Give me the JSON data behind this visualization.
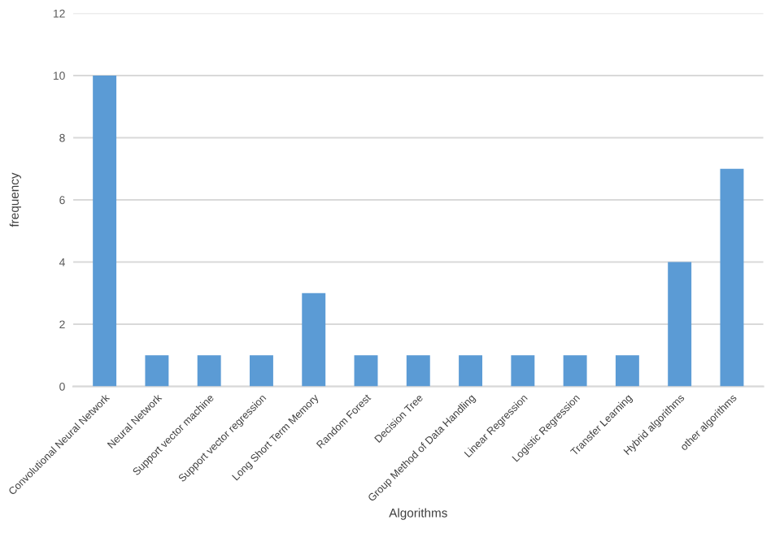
{
  "chart_data": {
    "type": "bar",
    "xlabel": "Algorithms",
    "ylabel": "frequency",
    "categories": [
      "Convolutional Neural Network",
      "Neural Network",
      "Support vector machine",
      "Support vector regression",
      "Long Short Term Memory",
      "Random Forest",
      "Decision Tree",
      "Group Method of Data Handling",
      "Linear Regression",
      "Logistic Regression",
      "Transfer Learning",
      "Hybrid algorithms",
      "other algorithms"
    ],
    "values": [
      10,
      1,
      1,
      1,
      3,
      1,
      1,
      1,
      1,
      1,
      1,
      4,
      7
    ],
    "color": "#5b9bd5",
    "ylim": [
      0,
      12
    ],
    "yticks": [
      0,
      2,
      4,
      6,
      8,
      10,
      12
    ],
    "grid": "y",
    "legend": false
  }
}
